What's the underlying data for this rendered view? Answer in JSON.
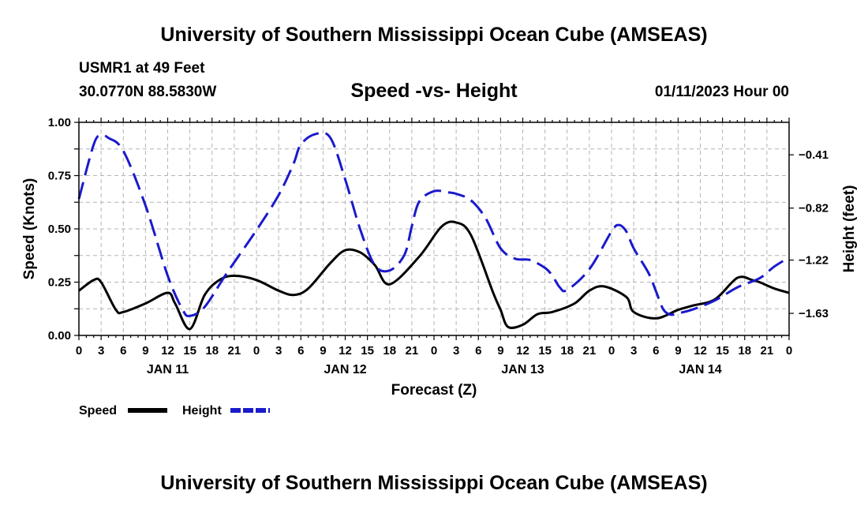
{
  "header": {
    "title": "University of Southern Mississippi Ocean Cube (AMSEAS)",
    "station": "USMR1 at 49 Feet",
    "coords": "30.0770N  88.5830W",
    "subtitle": "Speed -vs- Height",
    "datetime": "01/11/2023 Hour 00"
  },
  "footer": {
    "title": "University of Southern Mississippi Ocean Cube (AMSEAS)"
  },
  "legend": {
    "speed_label": "Speed",
    "height_label": "Height"
  },
  "colors": {
    "speed": "#000000",
    "height": "#1a1acc",
    "grid": "#b4b4b4"
  },
  "chart_data": {
    "type": "line",
    "xlabel": "Forecast (Z)",
    "ylabel": "Speed (Knots)",
    "y2label": "Height (feet)",
    "xlim": [
      0,
      96
    ],
    "ylim": [
      0,
      1.0
    ],
    "y2lim": [
      -1.8,
      -0.16
    ],
    "x_tick_labels": [
      "0",
      "3",
      "6",
      "9",
      "12",
      "15",
      "18",
      "21",
      "0",
      "3",
      "6",
      "9",
      "12",
      "15",
      "18",
      "21",
      "0",
      "3",
      "6",
      "9",
      "12",
      "15",
      "18",
      "21",
      "0",
      "3",
      "6",
      "9",
      "12",
      "15",
      "18",
      "21",
      "0"
    ],
    "date_labels": [
      {
        "label": "JAN 11",
        "x": 12
      },
      {
        "label": "JAN 12",
        "x": 36
      },
      {
        "label": "JAN 13",
        "x": 60
      },
      {
        "label": "JAN 14",
        "x": 84
      }
    ],
    "y_ticks": [
      {
        "value": 0,
        "label": "0.00"
      },
      {
        "value": 0.25,
        "label": "0.25"
      },
      {
        "value": 0.5,
        "label": "0.50"
      },
      {
        "value": 0.75,
        "label": "0.75"
      },
      {
        "value": 1.0,
        "label": "1.00"
      }
    ],
    "y2_ticks": [
      {
        "value": -0.41,
        "label": "-0.41"
      },
      {
        "value": -0.82,
        "label": "-0.82"
      },
      {
        "value": -1.22,
        "label": "-1.22"
      },
      {
        "value": -1.63,
        "label": "-1.63"
      }
    ],
    "series": [
      {
        "name": "Speed",
        "axis": "left",
        "x": [
          0,
          2,
          3,
          5,
          6,
          9,
          12,
          13,
          15,
          17,
          19,
          21,
          24,
          27,
          29,
          31,
          34,
          36,
          38,
          40,
          42,
          46,
          49,
          51,
          53,
          56,
          57,
          58,
          60,
          62,
          64,
          67,
          69,
          71,
          74,
          75,
          78,
          81,
          83,
          86,
          89,
          91,
          92,
          94,
          96
        ],
        "y": [
          0.21,
          0.26,
          0.25,
          0.12,
          0.11,
          0.15,
          0.2,
          0.15,
          0.03,
          0.19,
          0.26,
          0.28,
          0.26,
          0.21,
          0.19,
          0.22,
          0.34,
          0.4,
          0.39,
          0.33,
          0.24,
          0.37,
          0.51,
          0.53,
          0.47,
          0.2,
          0.12,
          0.04,
          0.05,
          0.1,
          0.11,
          0.15,
          0.21,
          0.23,
          0.18,
          0.11,
          0.08,
          0.12,
          0.14,
          0.17,
          0.27,
          0.26,
          0.25,
          0.22,
          0.2
        ]
      },
      {
        "name": "Height",
        "axis": "right",
        "x": [
          0,
          2,
          3,
          4,
          6,
          9,
          12,
          14,
          15,
          17,
          20,
          24,
          27,
          29,
          30,
          32,
          34,
          36,
          38,
          40,
          42,
          44,
          45,
          46,
          48,
          50,
          51,
          53,
          55,
          57,
          59,
          61,
          63,
          64,
          65,
          66,
          69,
          72,
          73,
          74,
          75,
          77,
          78,
          79,
          80,
          81,
          83,
          86,
          89,
          92,
          94,
          96
        ],
        "y": [
          -0.75,
          -0.33,
          -0.26,
          -0.28,
          -0.38,
          -0.8,
          -1.34,
          -1.6,
          -1.65,
          -1.58,
          -1.32,
          -0.99,
          -0.72,
          -0.48,
          -0.33,
          -0.25,
          -0.28,
          -0.6,
          -0.98,
          -1.26,
          -1.3,
          -1.18,
          -0.96,
          -0.77,
          -0.69,
          -0.7,
          -0.71,
          -0.76,
          -0.9,
          -1.13,
          -1.21,
          -1.22,
          -1.28,
          -1.34,
          -1.43,
          -1.45,
          -1.29,
          -1.0,
          -0.95,
          -1.0,
          -1.13,
          -1.32,
          -1.46,
          -1.6,
          -1.64,
          -1.63,
          -1.6,
          -1.53,
          -1.43,
          -1.36,
          -1.27,
          -1.2
        ]
      }
    ]
  }
}
